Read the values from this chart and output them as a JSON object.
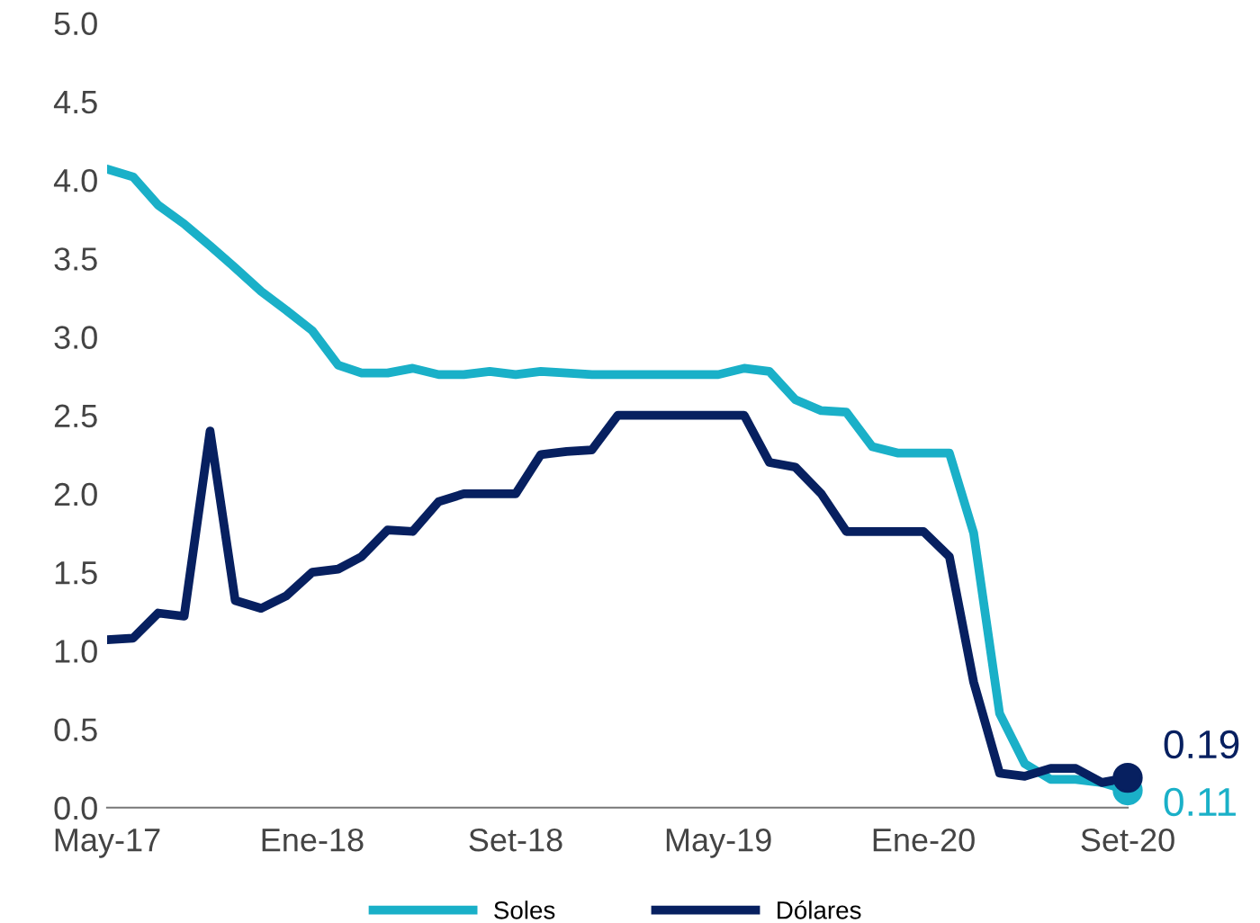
{
  "chart_data": {
    "type": "line",
    "x": [
      "2017-05",
      "2017-06",
      "2017-07",
      "2017-08",
      "2017-09",
      "2017-10",
      "2017-11",
      "2017-12",
      "2018-01",
      "2018-02",
      "2018-03",
      "2018-04",
      "2018-05",
      "2018-06",
      "2018-07",
      "2018-08",
      "2018-09",
      "2018-10",
      "2018-11",
      "2018-12",
      "2019-01",
      "2019-02",
      "2019-03",
      "2019-04",
      "2019-05",
      "2019-06",
      "2019-07",
      "2019-08",
      "2019-09",
      "2019-10",
      "2019-11",
      "2019-12",
      "2020-01",
      "2020-02",
      "2020-03",
      "2020-04",
      "2020-05",
      "2020-06",
      "2020-07",
      "2020-08",
      "2020-09"
    ],
    "series": [
      {
        "name": "Soles",
        "color": "#1ab0c8",
        "values": [
          4.07,
          4.02,
          3.84,
          3.72,
          3.58,
          3.44,
          3.29,
          3.17,
          3.04,
          2.82,
          2.77,
          2.77,
          2.8,
          2.76,
          2.76,
          2.78,
          2.76,
          2.78,
          2.77,
          2.76,
          2.76,
          2.76,
          2.76,
          2.76,
          2.76,
          2.8,
          2.78,
          2.6,
          2.53,
          2.52,
          2.3,
          2.26,
          2.26,
          2.26,
          1.75,
          0.6,
          0.28,
          0.18,
          0.18,
          0.16,
          0.11
        ]
      },
      {
        "name": "Dólares",
        "color": "#072060",
        "values": [
          1.07,
          1.08,
          1.24,
          1.22,
          2.4,
          1.32,
          1.27,
          1.35,
          1.5,
          1.52,
          1.6,
          1.77,
          1.76,
          1.95,
          2.0,
          2.0,
          2.0,
          2.25,
          2.27,
          2.28,
          2.5,
          2.5,
          2.5,
          2.5,
          2.5,
          2.5,
          2.2,
          2.17,
          2.0,
          1.76,
          1.76,
          1.76,
          1.76,
          1.6,
          0.8,
          0.22,
          0.2,
          0.25,
          0.25,
          0.16,
          0.19
        ]
      }
    ],
    "annotations": [
      {
        "text": "0.19",
        "x": "2020-09",
        "y": 0.19
      },
      {
        "text": "0.11",
        "x": "2020-09",
        "y": 0.11
      }
    ],
    "ylim": [
      0,
      5
    ],
    "yticks": [
      {
        "value": 0,
        "label": "0.0"
      },
      {
        "value": 0.5,
        "label": "0.5"
      },
      {
        "value": 1,
        "label": "1.0"
      },
      {
        "value": 1.5,
        "label": "1.5"
      },
      {
        "value": 2,
        "label": "2.0"
      },
      {
        "value": 2.5,
        "label": "2.5"
      },
      {
        "value": 3,
        "label": "3.0"
      },
      {
        "value": 3.5,
        "label": "3.5"
      },
      {
        "value": 4,
        "label": "4.0"
      },
      {
        "value": 4.5,
        "label": "4.5"
      },
      {
        "value": 5,
        "label": "5.0"
      }
    ],
    "xlim": [
      "2017-05",
      "2020-09"
    ],
    "xticks": [
      {
        "value": "2017-05",
        "label": "May-17"
      },
      {
        "value": "2018-01",
        "label": "Ene-18"
      },
      {
        "value": "2018-09",
        "label": "Set-18"
      },
      {
        "value": "2019-05",
        "label": "May-19"
      },
      {
        "value": "2020-01",
        "label": "Ene-20"
      },
      {
        "value": "2020-09",
        "label": "Set-20"
      }
    ],
    "grid": false,
    "legend": "bottom"
  }
}
